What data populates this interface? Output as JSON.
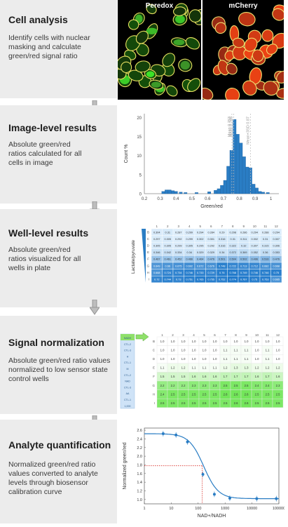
{
  "steps": [
    {
      "title": "Cell analysis",
      "desc": "Identify cells with nuclear masking and calculate green/red signal ratio"
    },
    {
      "title": "Image-level results",
      "desc": "Absolute green/red ratios calculated for all cells in image"
    },
    {
      "title": "Well-level results",
      "desc": "Absolute green/red ratios visualized for all wells in plate"
    },
    {
      "title": "Signal normalization",
      "desc": "Absolute green/red ratio values normalized to low sensor state control wells"
    },
    {
      "title": "Analyte quantification",
      "desc": "Normalized green/red ratio values converted to analyte levels through biosensor calibration curve"
    }
  ],
  "micro": {
    "left_label": "Peredox",
    "right_label": "mCherry"
  },
  "histogram": {
    "ylabel": "Count %",
    "xlabel": "Green/red",
    "xticks": [
      "0.2",
      "0.3",
      "0.4",
      "0.5",
      "0.6",
      "0.7",
      "0.8",
      "0.9",
      "1"
    ],
    "yticks": [
      "0",
      "5",
      "10",
      "15",
      "20"
    ],
    "markers": [
      "Mean 0.753",
      "Mean 0.765",
      "Mean+3SD 0.87"
    ]
  },
  "well_plate": {
    "ylabel": "Lactate/pyruvate",
    "cols": [
      "1",
      "2",
      "3",
      "4",
      "5",
      "6",
      "7",
      "8",
      "9",
      "10",
      "11",
      "12"
    ],
    "rows": [
      "B",
      "C",
      "D",
      "E",
      "F",
      "G",
      "H",
      "I"
    ],
    "values": [
      [
        "0.304",
        "0.31",
        "0.287",
        "0.299",
        "0.294",
        "0.284",
        "0.29",
        "0.298",
        "0.286",
        "0.294",
        "0.288",
        "0.294"
      ],
      [
        "0.297",
        "0.305",
        "0.292",
        "0.299",
        "0.302",
        "0.301",
        "0.316",
        "0.31",
        "0.311",
        "0.302",
        "0.31",
        "0.307"
      ],
      [
        "0.305",
        "0.305",
        "0.299",
        "0.305",
        "0.295",
        "0.292",
        "0.316",
        "0.322",
        "0.32",
        "0.307",
        "0.315",
        "0.306"
      ],
      [
        "0.346",
        "0.342",
        "0.334",
        "0.34",
        "0.329",
        "0.329",
        "0.34",
        "0.372",
        "0.369",
        "0.352",
        "0.36",
        "0.353"
      ],
      [
        "0.467",
        "0.461",
        "0.452",
        "0.466",
        "0.464",
        "0.476",
        "0.501",
        "0.504",
        "0.502",
        "0.496",
        "0.516",
        "0.476"
      ],
      [
        "0.649",
        "0.66",
        "0.675",
        "0.692",
        "0.672",
        "0.676",
        "0.748",
        "0.722",
        "0.713",
        "0.712",
        "0.682",
        "0.668"
      ],
      [
        "0.668",
        "0.724",
        "0.734",
        "0.746",
        "0.733",
        "0.729",
        "0.76",
        "0.768",
        "0.749",
        "0.746",
        "0.746",
        "0.75"
      ],
      [
        "0.72",
        "0.744",
        "0.73",
        "0.751",
        "0.765",
        "0.755",
        "0.752",
        "0.774",
        "0.767",
        "0.75",
        "0.753",
        "0.665"
      ]
    ]
  },
  "norm_plate": {
    "cols": [
      "1",
      "2",
      "3",
      "4",
      "5",
      "6",
      "7",
      "8",
      "9",
      "10",
      "11",
      "12"
    ],
    "rows": [
      "B",
      "C",
      "D",
      "E",
      "F",
      "G",
      "H",
      "I"
    ],
    "values": [
      [
        "1.0",
        "1.0",
        "1.0",
        "1.0",
        "1.0",
        "1.0",
        "1.0",
        "1.0",
        "1.0",
        "1.0",
        "1.0",
        "1.0"
      ],
      [
        "1.0",
        "1.0",
        "1.0",
        "1.0",
        "1.0",
        "1.0",
        "1.1",
        "1.1",
        "1.1",
        "1.0",
        "1.1",
        "1.0"
      ],
      [
        "1.0",
        "1.0",
        "1.0",
        "1.0",
        "1.0",
        "1.0",
        "1.1",
        "1.1",
        "1.1",
        "1.0",
        "1.1",
        "1.0"
      ],
      [
        "1.1",
        "1.2",
        "1.2",
        "1.1",
        "1.1",
        "1.1",
        "1.2",
        "1.3",
        "1.3",
        "1.2",
        "1.2",
        "1.2"
      ],
      [
        "1.5",
        "1.5",
        "1.5",
        "1.6",
        "1.6",
        "1.6",
        "1.7",
        "1.7",
        "1.7",
        "1.6",
        "1.7",
        "1.6"
      ],
      [
        "2.2",
        "2.2",
        "2.2",
        "2.3",
        "2.3",
        "2.3",
        "2.5",
        "2.5",
        "2.5",
        "2.4",
        "2.4",
        "2.3"
      ],
      [
        "2.4",
        "2.5",
        "2.5",
        "2.5",
        "2.5",
        "2.5",
        "2.6",
        "2.6",
        "2.6",
        "2.5",
        "2.5",
        "2.5"
      ],
      [
        "2.5",
        "2.5",
        "2.5",
        "2.5",
        "2.5",
        "2.5",
        "2.5",
        "2.6",
        "2.6",
        "2.5",
        "2.5",
        "2.5"
      ]
    ],
    "side_labels": [
      "NADH",
      "",
      "CTL-2",
      "",
      "CTL-3",
      "",
      "H",
      "",
      "CTL-1",
      "",
      "M",
      "",
      "CTL-2",
      "",
      "NAD",
      "",
      "CTL-3",
      "",
      "AA",
      "",
      "CTL-1",
      "",
      "1,000"
    ]
  },
  "calibration": {
    "ylabel": "Normalized green/red",
    "xlabel": "NAD+/NADH",
    "yticks": [
      "1.0",
      "1.2",
      "1.4",
      "1.6",
      "1.8",
      "2.0",
      "2.2",
      "2.4",
      "2.6"
    ],
    "xticks": [
      "1",
      "10",
      "100",
      "1000",
      "10000",
      "100000"
    ],
    "points": [
      [
        5,
        2.52
      ],
      [
        15,
        2.49
      ],
      [
        40,
        2.33
      ],
      [
        150,
        1.58
      ],
      [
        400,
        1.12
      ],
      [
        1500,
        1.03
      ],
      [
        15000,
        1.02
      ],
      [
        80000,
        1.02
      ]
    ],
    "fit": {
      "top": 2.52,
      "bottom": 1.02,
      "ec50": 160,
      "hill": 1.6
    },
    "reference": {
      "x": 140,
      "y": 1.78
    }
  },
  "colors": {
    "panel": "#ececec",
    "accent": "#2a7dc4",
    "green": "#7fe05a"
  }
}
